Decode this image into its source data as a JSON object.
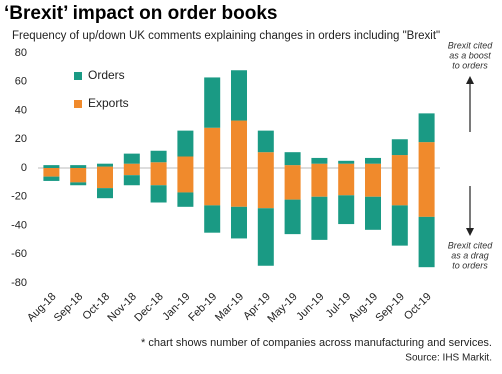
{
  "chart_data": {
    "type": "stacked_bar",
    "title": "‘Brexit’ impact on order books",
    "subtitle": "Frequency of up/down UK comments explaining changes in orders including \"Brexit\"",
    "categories": [
      "Aug-18",
      "Sep-18",
      "Oct-18",
      "Nov-18",
      "Dec-18",
      "Jan-19",
      "Feb-19",
      "Mar-19",
      "Apr-19",
      "May-19",
      "Jun-19",
      "Jul-19",
      "Aug-19",
      "Sep-19",
      "Oct-19"
    ],
    "series": [
      {
        "name": "Exports",
        "color": "#f08a2c",
        "positive": [
          0,
          0,
          1,
          3,
          4,
          8,
          28,
          33,
          11,
          2,
          3,
          3,
          3,
          9,
          18
        ],
        "negative": [
          -6,
          -10,
          -14,
          -5,
          -12,
          -17,
          -26,
          -27,
          -28,
          -22,
          -20,
          -19,
          -20,
          -26,
          -34
        ]
      },
      {
        "name": "Orders",
        "color": "#1a9a84",
        "positive": [
          2,
          2,
          2,
          7,
          8,
          18,
          35,
          35,
          15,
          9,
          4,
          2,
          4,
          11,
          20
        ],
        "negative": [
          -3,
          -2,
          -7,
          -7,
          -12,
          -10,
          -19,
          -22,
          -40,
          -24,
          -30,
          -20,
          -23,
          -28,
          -35
        ]
      }
    ],
    "legend_order": [
      1,
      0
    ],
    "ylim": [
      -80,
      80
    ],
    "yticks": [
      -80,
      -60,
      -40,
      -20,
      0,
      20,
      40,
      60,
      80
    ],
    "annotations": {
      "boost": [
        "Brexit cited",
        "as a boost",
        "to orders"
      ],
      "drag": [
        "Brexit cited",
        "as a drag",
        "to orders"
      ]
    },
    "footnote": "* chart shows number of companies across manufacturing and services.",
    "source": "Source: IHS Markit."
  }
}
